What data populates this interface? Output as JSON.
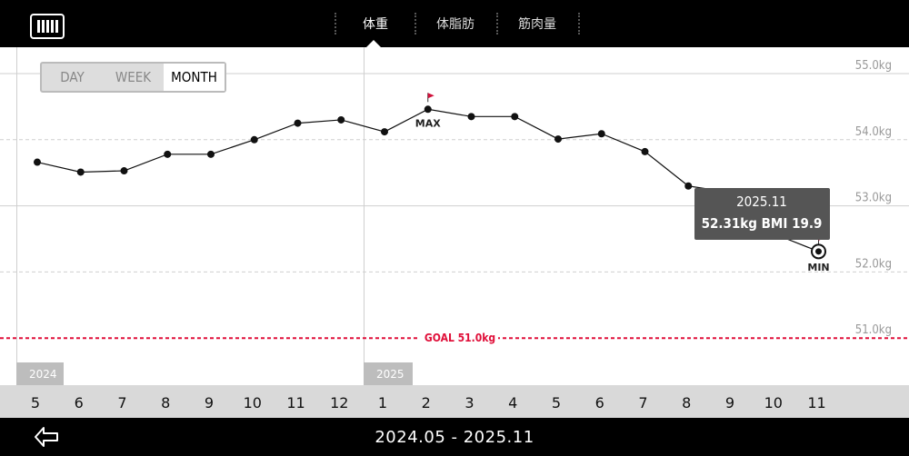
{
  "tabs": [
    {
      "label": "体重",
      "active": true
    },
    {
      "label": "体脂肪",
      "active": false
    },
    {
      "label": "筋肉量",
      "active": false
    }
  ],
  "segmented": {
    "day": "DAY",
    "week": "WEEK",
    "month": "MONTH",
    "selected": "MONTH"
  },
  "yaxis": {
    "ticks": [
      {
        "value": 55.0,
        "label": "55.0kg"
      },
      {
        "value": 54.0,
        "label": "54.0kg"
      },
      {
        "value": 53.0,
        "label": "53.0kg"
      },
      {
        "value": 52.0,
        "label": "52.0kg"
      },
      {
        "value": 51.0,
        "label": "51.0kg"
      }
    ]
  },
  "goal": {
    "label": "GOAL 51.0kg",
    "value": 51.0,
    "color": "#e0103a"
  },
  "markers": {
    "max": "MAX",
    "min": "MIN",
    "flag_color": "#d0103a"
  },
  "tooltip": {
    "date": "2025.11",
    "value_text": "52.31kg BMI 19.9"
  },
  "years": [
    "2024",
    "2025"
  ],
  "months": [
    "5",
    "6",
    "7",
    "8",
    "9",
    "10",
    "11",
    "12",
    "1",
    "2",
    "3",
    "4",
    "5",
    "6",
    "7",
    "8",
    "9",
    "10",
    "11"
  ],
  "range": "2024.05 - 2025.11",
  "chart_data": {
    "type": "line",
    "categories": [
      "2024.05",
      "2024.06",
      "2024.07",
      "2024.08",
      "2024.09",
      "2024.10",
      "2024.11",
      "2024.12",
      "2025.01",
      "2025.02",
      "2025.03",
      "2025.04",
      "2025.05",
      "2025.06",
      "2025.07",
      "2025.08",
      "2025.09",
      "2025.10",
      "2025.11"
    ],
    "values": [
      53.66,
      53.51,
      53.53,
      53.78,
      53.78,
      54.0,
      54.25,
      54.3,
      54.12,
      54.46,
      54.35,
      54.35,
      54.01,
      54.09,
      53.82,
      53.3,
      53.2,
      52.57,
      52.31
    ],
    "ylim": [
      50.7,
      55.3
    ],
    "grid": true,
    "goal": 51.0,
    "max_index": 9,
    "min_index": 18,
    "selected_index": 18
  }
}
